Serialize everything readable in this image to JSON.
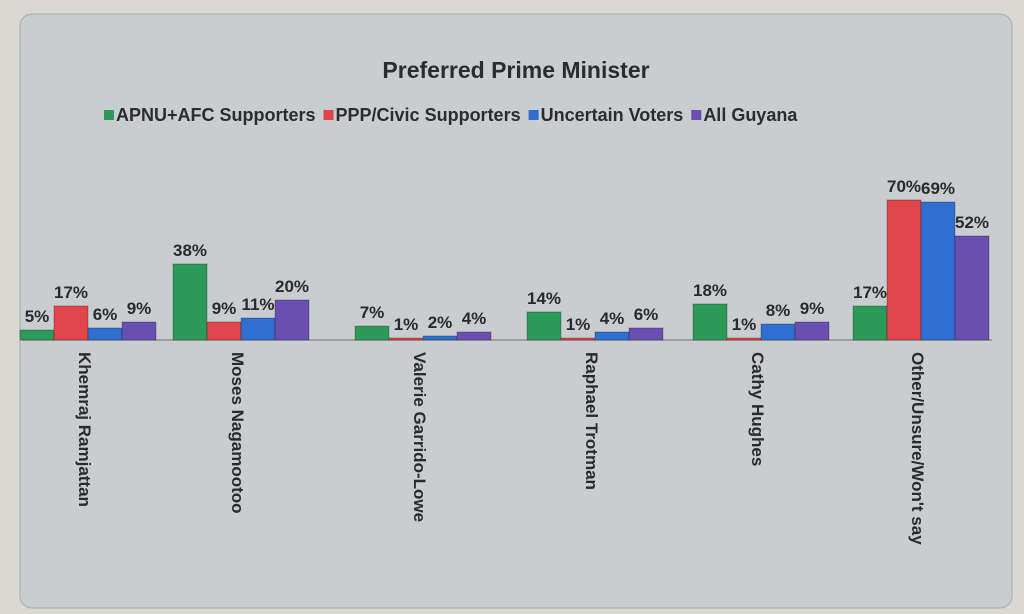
{
  "chart_data": {
    "type": "bar",
    "title": "Preferred Prime Minister",
    "categories": [
      "Khemraj Ramjattan",
      "Moses Nagamootoo",
      "Valerie Garrido-Lowe",
      "Raphael Trotman",
      "Cathy Hughes",
      "Other/Unsure/Won't say"
    ],
    "series": [
      {
        "name": "APNU+AFC Supporters",
        "color": "#2e9a5a",
        "values": [
          5,
          38,
          7,
          14,
          18,
          17
        ],
        "labels": [
          "5%",
          "38%",
          "7%",
          "14%",
          "18%",
          "17%"
        ]
      },
      {
        "name": "PPP/Civic Supporters",
        "color": "#e0454c",
        "values": [
          17,
          9,
          1,
          1,
          1,
          70
        ],
        "labels": [
          "17%",
          "9%",
          "1%",
          "1%",
          "1%",
          "70%"
        ]
      },
      {
        "name": "Uncertain Voters",
        "color": "#2f6fcf",
        "values": [
          6,
          11,
          2,
          4,
          8,
          69
        ],
        "labels": [
          "6%",
          "11%",
          "2%",
          "4%",
          "8%",
          "69%"
        ]
      },
      {
        "name": "All Guyana",
        "color": "#6a4fb0",
        "values": [
          9,
          20,
          4,
          6,
          9,
          52
        ],
        "labels": [
          "9%",
          "20%",
          "4%",
          "6%",
          "9%",
          "52%"
        ]
      }
    ],
    "ylim": [
      0,
      70
    ],
    "legend_position": "top",
    "grid": false
  }
}
